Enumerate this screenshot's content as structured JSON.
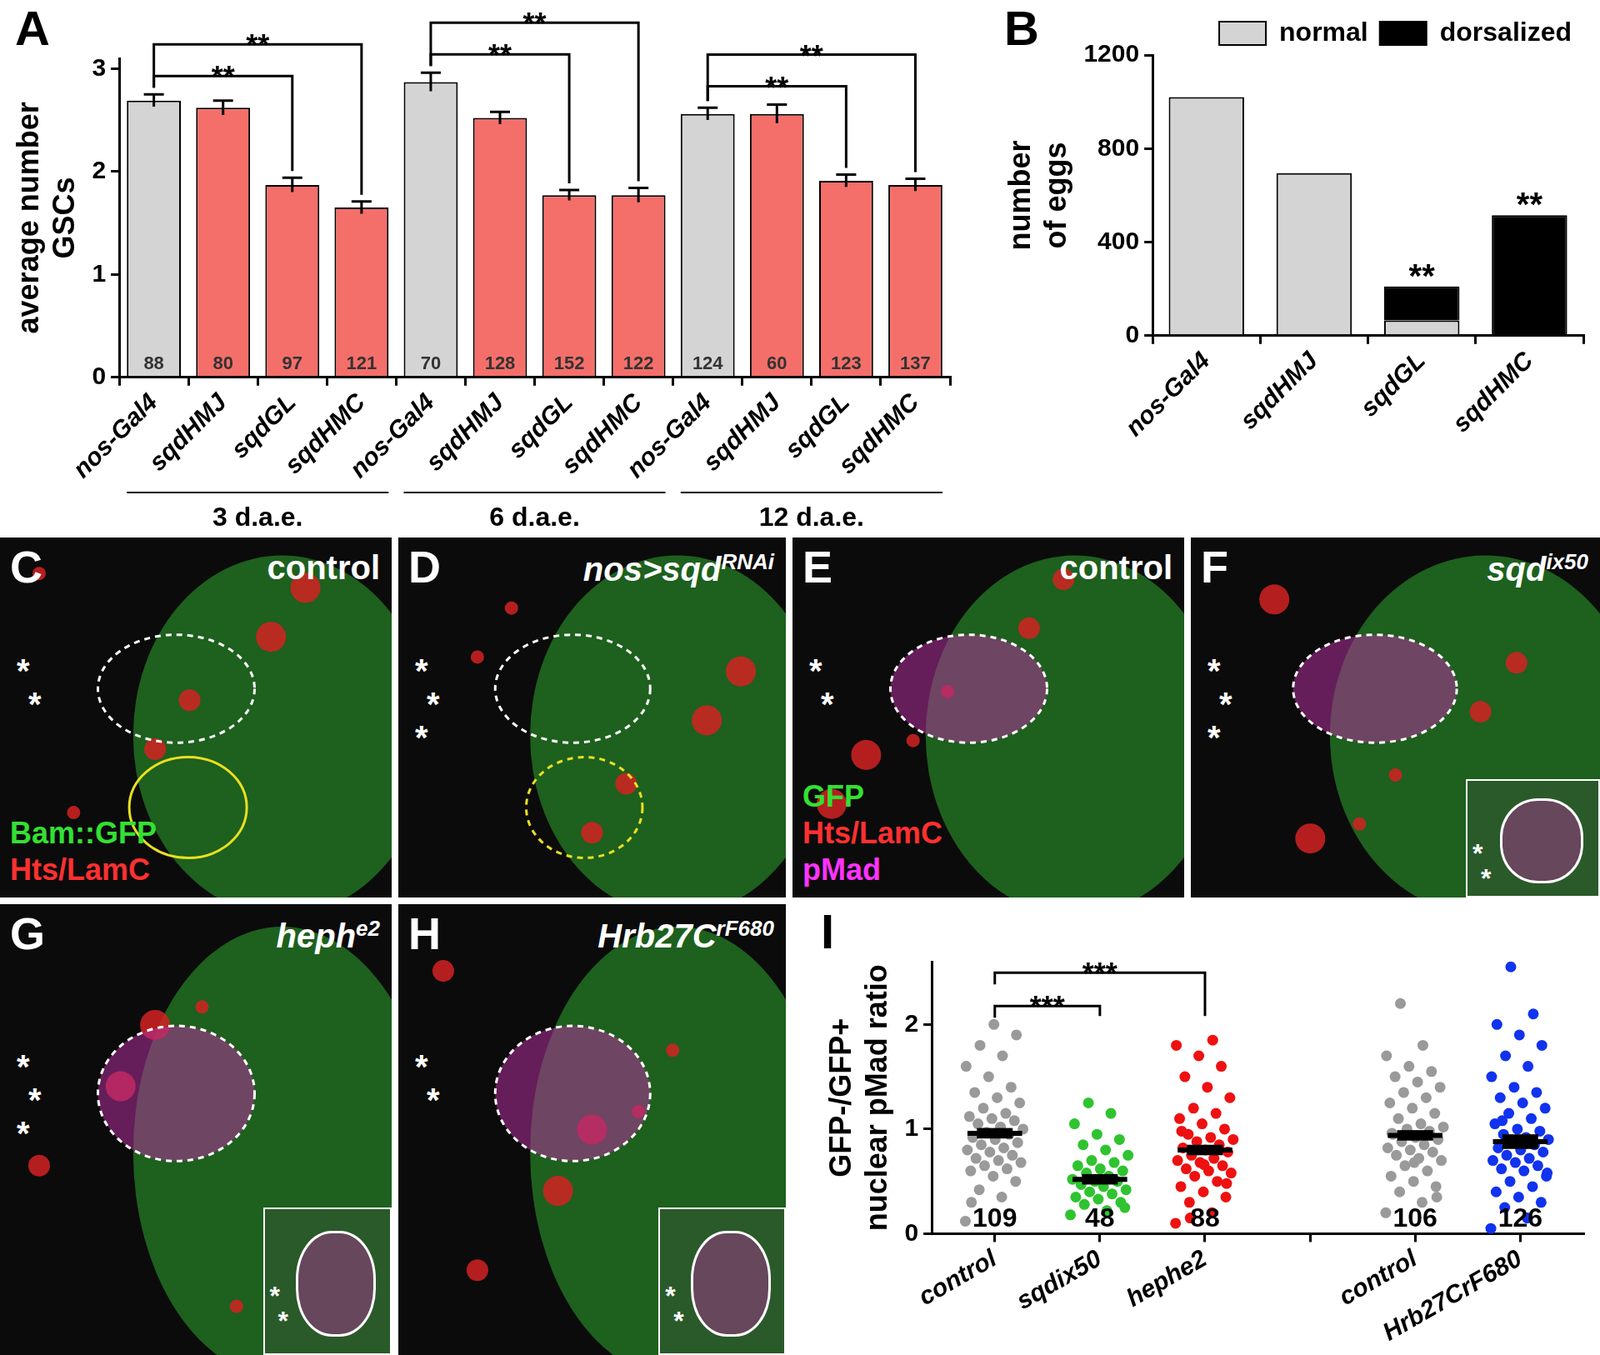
{
  "chart_data": [
    {
      "panel": "A",
      "type": "bar",
      "categories": [
        "nos-Gal4",
        "sqdHMJ",
        "sqdGL",
        "sqdHMC",
        "nos-Gal4",
        "sqdHMJ",
        "sqdGL",
        "sqdHMC",
        "nos-Gal4",
        "sqdHMJ",
        "sqdGL",
        "sqdHMC"
      ],
      "values": [
        2.69,
        2.62,
        1.87,
        1.65,
        2.87,
        2.52,
        1.77,
        1.77,
        2.56,
        2.56,
        1.91,
        1.87
      ],
      "errors": [
        0.06,
        0.07,
        0.07,
        0.06,
        0.09,
        0.06,
        0.05,
        0.07,
        0.06,
        0.09,
        0.06,
        0.06
      ],
      "n": [
        88,
        80,
        97,
        121,
        70,
        128,
        152,
        122,
        124,
        60,
        123,
        137
      ],
      "colors": [
        "#d4d4d4",
        "#f46f6a",
        "#f46f6a",
        "#f46f6a",
        "#d4d4d4",
        "#f46f6a",
        "#f46f6a",
        "#f46f6a",
        "#d4d4d4",
        "#f46f6a",
        "#f46f6a",
        "#f46f6a"
      ],
      "groups": [
        {
          "label": "3 d.a.e.",
          "from": 0,
          "to": 3
        },
        {
          "label": "6 d.a.e.",
          "from": 4,
          "to": 7
        },
        {
          "label": "12 d.a.e.",
          "from": 8,
          "to": 11
        }
      ],
      "annotations": [
        {
          "from": 0,
          "to": 2,
          "text": "**"
        },
        {
          "from": 0,
          "to": 3,
          "text": "**"
        },
        {
          "from": 4,
          "to": 6,
          "text": "**"
        },
        {
          "from": 4,
          "to": 7,
          "text": "**"
        },
        {
          "from": 8,
          "to": 10,
          "text": "**"
        },
        {
          "from": 8,
          "to": 11,
          "text": "**"
        }
      ],
      "y_label": [
        "average number",
        "GSCs"
      ],
      "ylim": [
        0,
        3.1
      ],
      "yticks": [
        0,
        1,
        2,
        3
      ],
      "grid": false
    },
    {
      "panel": "B",
      "type": "bar",
      "stacked": true,
      "categories": [
        "nos-Gal4",
        "sqdHMJ",
        "sqdGL",
        "sqdHMC"
      ],
      "series": [
        {
          "name": "normal",
          "color": "#d4d4d4",
          "values": [
            1020,
            695,
            65,
            0
          ]
        },
        {
          "name": "dorsalized",
          "color": "#000000",
          "values": [
            0,
            0,
            145,
            515
          ]
        }
      ],
      "annotations": [
        {
          "index": 2,
          "text": "**"
        },
        {
          "index": 3,
          "text": "**"
        }
      ],
      "y_label": [
        "number",
        "of eggs"
      ],
      "ylim": [
        0,
        1200
      ],
      "yticks": [
        0,
        400,
        800,
        1200
      ],
      "grid": false,
      "legend": "top-right"
    },
    {
      "panel": "I",
      "type": "scatter",
      "categories": [
        "control",
        "sqdix50",
        "hephe2",
        null,
        "control",
        "Hrb27CrF680"
      ],
      "colors": [
        "#9a9a9a",
        "#2fc42f",
        "#ee1111",
        null,
        "#9a9a9a",
        "#1133ee"
      ],
      "values": [
        [
          0.12,
          0.35,
          0.42,
          0.5,
          0.55,
          0.6,
          0.62,
          0.65,
          0.68,
          0.7,
          0.72,
          0.75,
          0.78,
          0.8,
          0.82,
          0.85,
          0.87,
          0.9,
          0.92,
          0.95,
          0.97,
          1.0,
          1.02,
          1.05,
          1.08,
          1.1,
          1.12,
          1.15,
          1.2,
          1.25,
          1.3,
          1.35,
          1.4,
          1.5,
          1.6,
          1.7,
          1.8,
          1.9,
          2.0,
          0.3
        ],
        [
          0.18,
          0.22,
          0.28,
          0.3,
          0.33,
          0.35,
          0.38,
          0.4,
          0.42,
          0.45,
          0.47,
          0.5,
          0.5,
          0.52,
          0.55,
          0.58,
          0.6,
          0.62,
          0.65,
          0.68,
          0.7,
          0.75,
          0.8,
          0.85,
          0.9,
          0.95,
          1.05,
          1.15,
          1.25,
          0.25
        ],
        [
          0.1,
          0.2,
          0.3,
          0.35,
          0.4,
          0.45,
          0.5,
          0.55,
          0.58,
          0.6,
          0.62,
          0.65,
          0.68,
          0.7,
          0.72,
          0.75,
          0.78,
          0.8,
          0.82,
          0.85,
          0.88,
          0.9,
          0.92,
          0.95,
          1.0,
          1.05,
          1.1,
          1.15,
          1.2,
          1.3,
          1.4,
          1.5,
          1.6,
          1.7,
          1.8,
          1.85,
          0.15,
          0.48,
          0.66,
          0.98
        ],
        [],
        [
          0.2,
          0.3,
          0.4,
          0.45,
          0.5,
          0.55,
          0.6,
          0.65,
          0.7,
          0.72,
          0.75,
          0.78,
          0.8,
          0.82,
          0.85,
          0.88,
          0.9,
          0.92,
          0.95,
          0.98,
          1.0,
          1.02,
          1.05,
          1.1,
          1.15,
          1.2,
          1.25,
          1.3,
          1.35,
          1.4,
          1.45,
          1.5,
          1.55,
          1.6,
          1.7,
          1.8,
          2.2,
          0.35,
          0.68,
          0.96
        ],
        [
          0.05,
          0.15,
          0.25,
          0.3,
          0.35,
          0.4,
          0.45,
          0.5,
          0.55,
          0.6,
          0.62,
          0.65,
          0.68,
          0.7,
          0.72,
          0.75,
          0.78,
          0.8,
          0.82,
          0.85,
          0.88,
          0.9,
          0.92,
          0.95,
          0.98,
          1.0,
          1.05,
          1.1,
          1.15,
          1.2,
          1.25,
          1.3,
          1.35,
          1.4,
          1.5,
          1.6,
          1.7,
          1.8,
          1.9,
          2.0,
          2.1,
          2.55,
          0.58,
          0.86,
          1.08
        ]
      ],
      "means": [
        0.96,
        0.52,
        0.8,
        null,
        0.94,
        0.88
      ],
      "errors": [
        0.05,
        0.05,
        0.05,
        null,
        0.05,
        0.07
      ],
      "n": [
        109,
        48,
        88,
        null,
        106,
        126
      ],
      "annotations": [
        {
          "from": 0,
          "to": 1,
          "text": "***"
        },
        {
          "from": 0,
          "to": 2,
          "text": "***"
        }
      ],
      "y_label": [
        "GFP-/GFP+",
        "nuclear pMad ratio"
      ],
      "ylim": [
        0,
        2.6
      ],
      "yticks": [
        0,
        1,
        2
      ],
      "grid": false
    }
  ],
  "images": [
    {
      "panel": "C",
      "label": {
        "text": "control"
      },
      "channels": [
        {
          "text": "Bam::GFP",
          "color": "#33e033"
        },
        {
          "text": "Hts/LamC",
          "color": "#ff3030"
        }
      ],
      "asterisks": [
        "*",
        "*"
      ]
    },
    {
      "panel": "D",
      "label": {
        "text": "nos>sqd",
        "sup": "RNAi"
      },
      "channels": [],
      "asterisks": [
        "*",
        "*",
        "*"
      ]
    },
    {
      "panel": "E",
      "label": {
        "text": "control"
      },
      "channels": [
        {
          "text": "GFP",
          "color": "#33e033"
        },
        {
          "text": "Hts/LamC",
          "color": "#ff3030"
        },
        {
          "text": "pMad",
          "color": "#ff33ff"
        }
      ],
      "asterisks": [
        "*",
        "*"
      ]
    },
    {
      "panel": "F",
      "label": {
        "text": "sqd",
        "sup": "ix50"
      },
      "channels": [],
      "asterisks": [
        "*",
        "*",
        "*"
      ],
      "inset_asterisks": [
        "*",
        "*"
      ]
    },
    {
      "panel": "G",
      "label": {
        "text": "heph",
        "sup": "e2"
      },
      "channels": [],
      "asterisks": [
        "*",
        "*",
        "*"
      ],
      "inset_asterisks": [
        "*",
        "*"
      ]
    },
    {
      "panel": "H",
      "label": {
        "text": "Hrb27C",
        "sup": "rF680"
      },
      "channels": [],
      "asterisks": [
        "*",
        "*"
      ],
      "inset_asterisks": [
        "*",
        "*"
      ]
    }
  ]
}
